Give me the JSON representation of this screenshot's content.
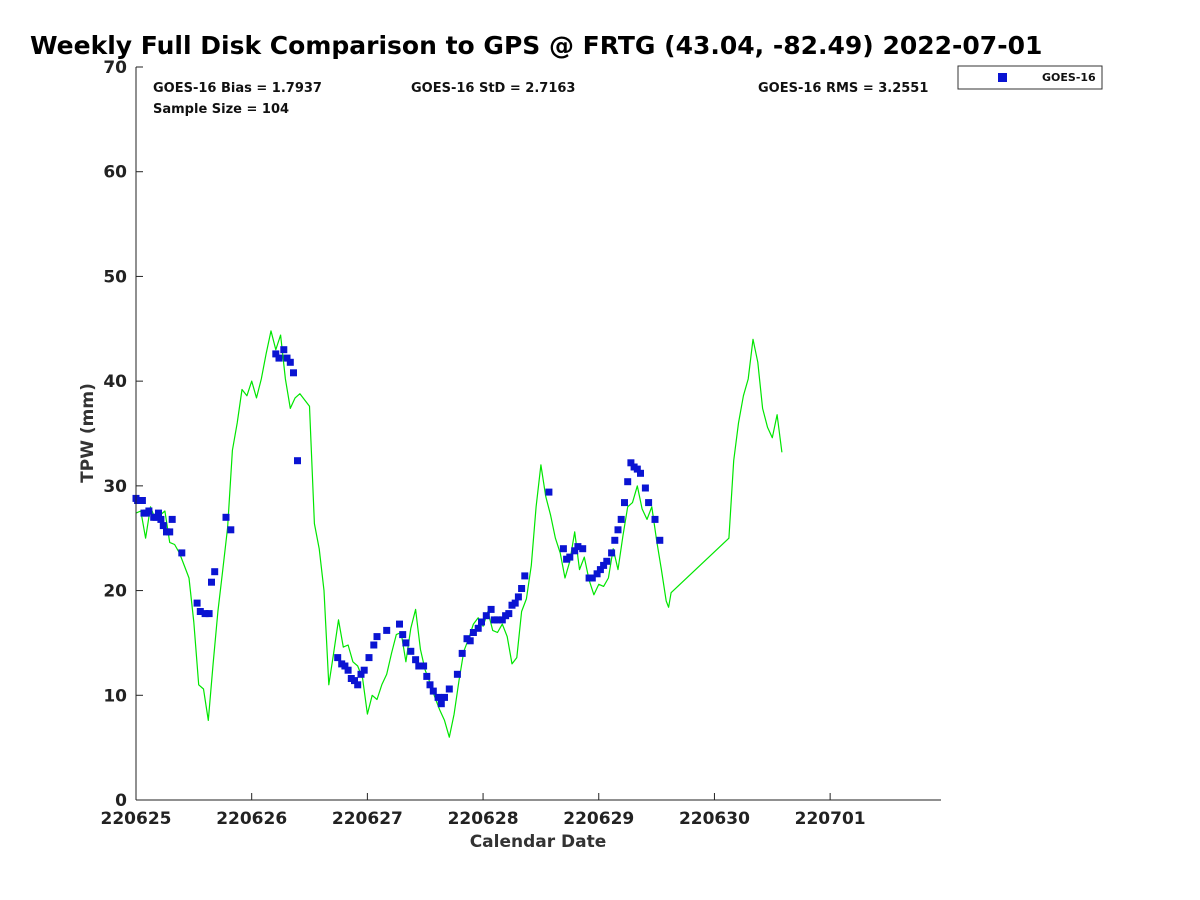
{
  "chart_data": {
    "type": "scatter",
    "title": "Weekly Full Disk Comparison to GPS @ FRTG (43.04, -82.49) 2022-07-01",
    "xlabel": "Calendar Date",
    "ylabel": "TPW (mm)",
    "xlim": [
      "2022-06-25 00:00",
      "2022-07-01 23:00"
    ],
    "ylim": [
      0,
      70
    ],
    "y_ticks": [
      0,
      10,
      20,
      30,
      40,
      50,
      60,
      70
    ],
    "x_tick_labels": [
      "220625",
      "220626",
      "220627",
      "220628",
      "220629",
      "220630",
      "220701"
    ],
    "grid": false,
    "legend": {
      "entries": [
        "GOES-16"
      ],
      "placement": "top-right outside"
    },
    "stats": {
      "bias": "GOES-16 Bias = 1.7937",
      "std": "GOES-16 StD = 2.7163",
      "rms": "GOES-16 RMS = 3.2551",
      "n": "Sample Size = 104"
    },
    "colors": {
      "goes": "#0a14d2",
      "gps": "#00e600"
    },
    "series": [
      {
        "name": "GOES-16",
        "style": "square-marker",
        "points": [
          [
            "2022-06-25 00:00",
            28.8
          ],
          [
            "2022-06-25 00:20",
            28.6
          ],
          [
            "2022-06-25 00:40",
            28.6
          ],
          [
            "2022-06-25 01:00",
            28.6
          ],
          [
            "2022-06-25 01:20",
            28.6
          ],
          [
            "2022-06-25 01:40",
            27.4
          ],
          [
            "2022-06-25 02:10",
            27.4
          ],
          [
            "2022-06-25 02:40",
            27.6
          ],
          [
            "2022-06-25 03:40",
            27.0
          ],
          [
            "2022-06-25 04:10",
            27.0
          ],
          [
            "2022-06-25 04:40",
            27.4
          ],
          [
            "2022-06-25 05:10",
            26.8
          ],
          [
            "2022-06-25 05:40",
            26.2
          ],
          [
            "2022-06-25 06:20",
            25.6
          ],
          [
            "2022-06-25 07:00",
            25.6
          ],
          [
            "2022-06-25 07:30",
            26.8
          ],
          [
            "2022-06-25 09:30",
            23.6
          ],
          [
            "2022-06-25 12:40",
            18.8
          ],
          [
            "2022-06-25 13:20",
            18.0
          ],
          [
            "2022-06-25 14:20",
            17.8
          ],
          [
            "2022-06-25 15:10",
            17.8
          ],
          [
            "2022-06-25 15:40",
            20.8
          ],
          [
            "2022-06-25 16:20",
            21.8
          ],
          [
            "2022-06-25 18:40",
            27.0
          ],
          [
            "2022-06-25 19:40",
            25.8
          ],
          [
            "2022-06-26 05:00",
            42.6
          ],
          [
            "2022-06-26 05:40",
            42.2
          ],
          [
            "2022-06-26 06:40",
            43.0
          ],
          [
            "2022-06-26 07:20",
            42.2
          ],
          [
            "2022-06-26 08:00",
            41.8
          ],
          [
            "2022-06-26 08:40",
            40.8
          ],
          [
            "2022-06-26 09:30",
            32.4
          ],
          [
            "2022-06-26 17:50",
            13.6
          ],
          [
            "2022-06-26 18:40",
            13.0
          ],
          [
            "2022-06-26 19:20",
            12.8
          ],
          [
            "2022-06-26 20:00",
            12.4
          ],
          [
            "2022-06-26 20:40",
            11.6
          ],
          [
            "2022-06-26 21:20",
            11.4
          ],
          [
            "2022-06-26 22:00",
            11.0
          ],
          [
            "2022-06-26 22:40",
            12.0
          ],
          [
            "2022-06-26 23:20",
            12.4
          ],
          [
            "2022-06-27 00:20",
            13.6
          ],
          [
            "2022-06-27 01:20",
            14.8
          ],
          [
            "2022-06-27 02:00",
            15.6
          ],
          [
            "2022-06-27 04:00",
            16.2
          ],
          [
            "2022-06-27 06:40",
            16.8
          ],
          [
            "2022-06-27 07:20",
            15.8
          ],
          [
            "2022-06-27 08:00",
            15.0
          ],
          [
            "2022-06-27 09:00",
            14.2
          ],
          [
            "2022-06-27 10:00",
            13.4
          ],
          [
            "2022-06-27 10:40",
            12.8
          ],
          [
            "2022-06-27 11:40",
            12.8
          ],
          [
            "2022-06-27 12:20",
            11.8
          ],
          [
            "2022-06-27 13:00",
            11.0
          ],
          [
            "2022-06-27 13:40",
            10.4
          ],
          [
            "2022-06-27 14:40",
            9.8
          ],
          [
            "2022-06-27 15:20",
            9.2
          ],
          [
            "2022-06-27 16:00",
            9.8
          ],
          [
            "2022-06-27 17:00",
            10.6
          ],
          [
            "2022-06-27 18:40",
            12.0
          ],
          [
            "2022-06-27 19:40",
            14.0
          ],
          [
            "2022-06-27 20:40",
            15.4
          ],
          [
            "2022-06-27 21:20",
            15.2
          ],
          [
            "2022-06-27 22:00",
            16.0
          ],
          [
            "2022-06-27 23:00",
            16.4
          ],
          [
            "2022-06-27 23:40",
            17.0
          ],
          [
            "2022-06-28 00:40",
            17.6
          ],
          [
            "2022-06-28 01:40",
            18.2
          ],
          [
            "2022-06-28 02:20",
            17.2
          ],
          [
            "2022-06-28 03:00",
            17.2
          ],
          [
            "2022-06-28 04:00",
            17.2
          ],
          [
            "2022-06-28 04:40",
            17.6
          ],
          [
            "2022-06-28 05:20",
            17.8
          ],
          [
            "2022-06-28 06:00",
            18.6
          ],
          [
            "2022-06-28 06:40",
            18.8
          ],
          [
            "2022-06-28 07:20",
            19.4
          ],
          [
            "2022-06-28 08:00",
            20.2
          ],
          [
            "2022-06-28 08:40",
            21.4
          ],
          [
            "2022-06-28 13:40",
            29.4
          ],
          [
            "2022-06-28 16:40",
            24.0
          ],
          [
            "2022-06-28 17:20",
            23.0
          ],
          [
            "2022-06-28 18:00",
            23.2
          ],
          [
            "2022-06-28 19:00",
            23.8
          ],
          [
            "2022-06-28 19:40",
            24.2
          ],
          [
            "2022-06-28 20:40",
            24.0
          ],
          [
            "2022-06-28 22:00",
            21.2
          ],
          [
            "2022-06-28 22:40",
            21.2
          ],
          [
            "2022-06-28 23:40",
            21.6
          ],
          [
            "2022-06-29 00:20",
            22.0
          ],
          [
            "2022-06-29 01:00",
            22.4
          ],
          [
            "2022-06-29 01:40",
            22.8
          ],
          [
            "2022-06-29 02:40",
            23.6
          ],
          [
            "2022-06-29 03:20",
            24.8
          ],
          [
            "2022-06-29 04:00",
            25.8
          ],
          [
            "2022-06-29 04:40",
            26.8
          ],
          [
            "2022-06-29 05:20",
            28.4
          ],
          [
            "2022-06-29 06:00",
            30.4
          ],
          [
            "2022-06-29 06:40",
            32.2
          ],
          [
            "2022-06-29 07:20",
            31.8
          ],
          [
            "2022-06-29 08:00",
            31.6
          ],
          [
            "2022-06-29 08:40",
            31.2
          ],
          [
            "2022-06-29 09:40",
            29.8
          ],
          [
            "2022-06-29 10:20",
            28.4
          ],
          [
            "2022-06-29 11:40",
            26.8
          ],
          [
            "2022-06-29 12:40",
            24.8
          ]
        ]
      },
      {
        "name": "GPS",
        "style": "line",
        "points": [
          [
            "2022-06-25 00:00",
            27.4
          ],
          [
            "2022-06-25 01:00",
            27.6
          ],
          [
            "2022-06-25 02:00",
            25.0
          ],
          [
            "2022-06-25 03:00",
            28.0
          ],
          [
            "2022-06-25 04:00",
            26.8
          ],
          [
            "2022-06-25 06:00",
            27.6
          ],
          [
            "2022-06-25 07:00",
            24.6
          ],
          [
            "2022-06-25 08:00",
            24.4
          ],
          [
            "2022-06-25 09:00",
            23.6
          ],
          [
            "2022-06-25 10:00",
            22.4
          ],
          [
            "2022-06-25 11:00",
            21.2
          ],
          [
            "2022-06-25 12:00",
            17.0
          ],
          [
            "2022-06-25 13:00",
            11.0
          ],
          [
            "2022-06-25 14:00",
            10.6
          ],
          [
            "2022-06-25 15:00",
            7.6
          ],
          [
            "2022-06-25 16:00",
            13.0
          ],
          [
            "2022-06-25 17:00",
            18.0
          ],
          [
            "2022-06-25 18:00",
            22.0
          ],
          [
            "2022-06-25 19:00",
            26.0
          ],
          [
            "2022-06-25 20:00",
            33.4
          ],
          [
            "2022-06-25 21:00",
            36.0
          ],
          [
            "2022-06-25 22:00",
            39.2
          ],
          [
            "2022-06-25 23:00",
            38.6
          ],
          [
            "2022-06-26 00:00",
            40.0
          ],
          [
            "2022-06-26 01:00",
            38.4
          ],
          [
            "2022-06-26 02:00",
            40.2
          ],
          [
            "2022-06-26 03:00",
            42.6
          ],
          [
            "2022-06-26 04:00",
            44.8
          ],
          [
            "2022-06-26 05:00",
            43.0
          ],
          [
            "2022-06-26 06:00",
            44.4
          ],
          [
            "2022-06-26 07:00",
            40.2
          ],
          [
            "2022-06-26 08:00",
            37.4
          ],
          [
            "2022-06-26 09:00",
            38.4
          ],
          [
            "2022-06-26 10:00",
            38.8
          ],
          [
            "2022-06-26 11:00",
            38.2
          ],
          [
            "2022-06-26 12:00",
            37.6
          ],
          [
            "2022-06-26 13:00",
            26.4
          ],
          [
            "2022-06-26 14:00",
            24.0
          ],
          [
            "2022-06-26 15:00",
            20.0
          ],
          [
            "2022-06-26 16:00",
            11.0
          ],
          [
            "2022-06-26 17:00",
            14.0
          ],
          [
            "2022-06-26 18:00",
            17.2
          ],
          [
            "2022-06-26 19:00",
            14.6
          ],
          [
            "2022-06-26 20:00",
            14.8
          ],
          [
            "2022-06-26 21:00",
            13.2
          ],
          [
            "2022-06-26 22:00",
            12.8
          ],
          [
            "2022-06-26 23:00",
            11.6
          ],
          [
            "2022-06-27 00:00",
            8.2
          ],
          [
            "2022-06-27 01:00",
            10.0
          ],
          [
            "2022-06-27 02:00",
            9.6
          ],
          [
            "2022-06-27 03:00",
            11.0
          ],
          [
            "2022-06-27 04:00",
            12.0
          ],
          [
            "2022-06-27 05:00",
            14.0
          ],
          [
            "2022-06-27 06:00",
            15.8
          ],
          [
            "2022-06-27 07:00",
            16.0
          ],
          [
            "2022-06-27 08:00",
            13.2
          ],
          [
            "2022-06-27 09:00",
            16.4
          ],
          [
            "2022-06-27 10:00",
            18.2
          ],
          [
            "2022-06-27 11:00",
            14.4
          ],
          [
            "2022-06-27 12:00",
            12.4
          ],
          [
            "2022-06-27 13:00",
            11.2
          ],
          [
            "2022-06-27 14:00",
            9.8
          ],
          [
            "2022-06-27 15:00",
            8.6
          ],
          [
            "2022-06-27 16:00",
            7.6
          ],
          [
            "2022-06-27 17:00",
            6.0
          ],
          [
            "2022-06-27 18:00",
            8.2
          ],
          [
            "2022-06-27 19:00",
            11.4
          ],
          [
            "2022-06-27 20:00",
            14.2
          ],
          [
            "2022-06-27 21:00",
            15.4
          ],
          [
            "2022-06-27 22:00",
            16.8
          ],
          [
            "2022-06-27 23:00",
            17.4
          ],
          [
            "2022-06-28 00:00",
            16.6
          ],
          [
            "2022-06-28 01:00",
            18.0
          ],
          [
            "2022-06-28 02:00",
            16.2
          ],
          [
            "2022-06-28 03:00",
            16.0
          ],
          [
            "2022-06-28 04:00",
            16.8
          ],
          [
            "2022-06-28 05:00",
            15.6
          ],
          [
            "2022-06-28 06:00",
            13.0
          ],
          [
            "2022-06-28 07:00",
            13.6
          ],
          [
            "2022-06-28 08:00",
            18.0
          ],
          [
            "2022-06-28 09:00",
            19.2
          ],
          [
            "2022-06-28 10:00",
            22.4
          ],
          [
            "2022-06-28 11:00",
            28.0
          ],
          [
            "2022-06-28 12:00",
            32.0
          ],
          [
            "2022-06-28 13:00",
            29.0
          ],
          [
            "2022-06-28 14:00",
            27.2
          ],
          [
            "2022-06-28 15:00",
            25.0
          ],
          [
            "2022-06-28 16:00",
            23.6
          ],
          [
            "2022-06-28 17:00",
            21.2
          ],
          [
            "2022-06-28 18:00",
            22.8
          ],
          [
            "2022-06-28 19:00",
            25.6
          ],
          [
            "2022-06-28 20:00",
            22.0
          ],
          [
            "2022-06-28 21:00",
            23.2
          ],
          [
            "2022-06-28 22:00",
            21.0
          ],
          [
            "2022-06-28 23:00",
            19.6
          ],
          [
            "2022-06-29 00:00",
            20.6
          ],
          [
            "2022-06-29 01:00",
            20.4
          ],
          [
            "2022-06-29 02:00",
            21.2
          ],
          [
            "2022-06-29 03:00",
            24.0
          ],
          [
            "2022-06-29 04:00",
            22.0
          ],
          [
            "2022-06-29 05:00",
            25.2
          ],
          [
            "2022-06-29 06:00",
            28.0
          ],
          [
            "2022-06-29 07:00",
            28.4
          ],
          [
            "2022-06-29 08:00",
            30.0
          ],
          [
            "2022-06-29 09:00",
            27.8
          ],
          [
            "2022-06-29 10:00",
            26.8
          ],
          [
            "2022-06-29 11:00",
            28.0
          ],
          [
            "2022-06-29 12:00",
            24.8
          ],
          [
            "2022-06-29 13:00",
            22.0
          ],
          [
            "2022-06-29 14:00",
            19.0
          ],
          [
            "2022-06-29 14:30",
            18.4
          ],
          [
            "2022-06-29 15:00",
            19.8
          ],
          [
            "2022-06-30 03:00",
            25.0
          ],
          [
            "2022-06-30 04:00",
            32.4
          ],
          [
            "2022-06-30 05:00",
            36.0
          ],
          [
            "2022-06-30 06:00",
            38.6
          ],
          [
            "2022-06-30 07:00",
            40.2
          ],
          [
            "2022-06-30 08:00",
            44.0
          ],
          [
            "2022-06-30 09:00",
            41.8
          ],
          [
            "2022-06-30 10:00",
            37.4
          ],
          [
            "2022-06-30 11:00",
            35.6
          ],
          [
            "2022-06-30 12:00",
            34.6
          ],
          [
            "2022-06-30 13:00",
            36.8
          ],
          [
            "2022-06-30 14:00",
            33.2
          ]
        ]
      }
    ]
  }
}
